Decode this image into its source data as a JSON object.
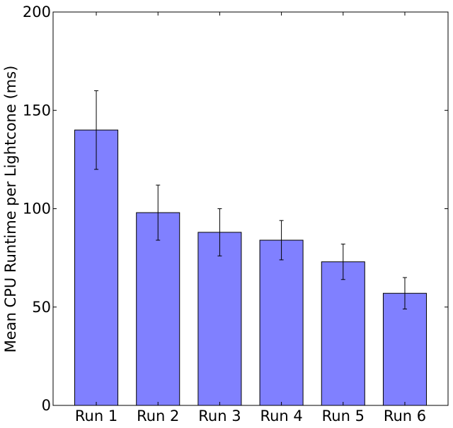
{
  "chart_data": {
    "type": "bar",
    "title": "",
    "xlabel": "",
    "ylabel": "Mean CPU Runtime per Lightcone (ms)",
    "categories": [
      "Run 1",
      "Run 2",
      "Run 3",
      "Run 4",
      "Run 5",
      "Run 6"
    ],
    "values": [
      140,
      98,
      88,
      84,
      73,
      57
    ],
    "error_low": [
      120,
      84,
      76,
      74,
      64,
      49
    ],
    "error_high": [
      160,
      112,
      100,
      94,
      82,
      65
    ],
    "ylim": [
      0,
      200
    ],
    "yticks": [
      0,
      50,
      100,
      150,
      200
    ],
    "grid": false,
    "bar_color": "#8080ff",
    "edge_color": "#000000"
  }
}
